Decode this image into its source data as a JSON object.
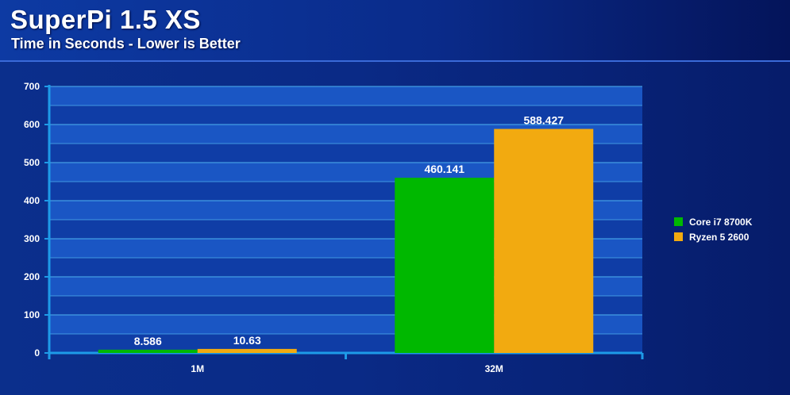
{
  "header": {
    "title": "SuperPi 1.5 XS",
    "subtitle": "Time in Seconds - Lower is Better"
  },
  "colors": {
    "background": "#0a2a86",
    "plot_band_light": "#1a56c4",
    "plot_band_dark": "#0f3da6",
    "gridline": "#4fb3f0",
    "axis": "#1e9be8"
  },
  "chart_data": {
    "type": "bar",
    "title": "SuperPi 1.5 XS",
    "subtitle": "Time in Seconds - Lower is Better",
    "xlabel": "",
    "ylabel": "",
    "categories": [
      "1M",
      "32M"
    ],
    "series": [
      {
        "name": "Core i7 8700K",
        "color": "#00b800",
        "values": [
          8.586,
          460.141
        ],
        "labels": [
          "8.586",
          "460.141"
        ]
      },
      {
        "name": "Ryzen 5 2600",
        "color": "#f2aa10",
        "values": [
          10.63,
          588.427
        ],
        "labels": [
          "10.63",
          "588.427"
        ]
      }
    ],
    "ylim": [
      0,
      700
    ],
    "yticks": [
      0,
      100,
      200,
      300,
      400,
      500,
      600,
      700
    ],
    "grid": true,
    "legend_position": "right"
  }
}
